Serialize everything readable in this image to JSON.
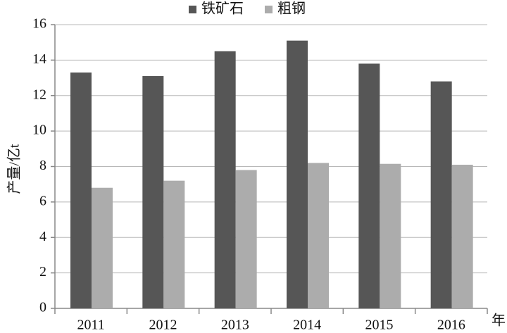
{
  "chart_data": {
    "type": "bar",
    "x_label": "年",
    "y_label": "产量/亿t",
    "categories": [
      "2011",
      "2012",
      "2013",
      "2014",
      "2015",
      "2016"
    ],
    "series": [
      {
        "name": "铁矿石",
        "color": "#565656",
        "values": [
          13.3,
          13.1,
          14.5,
          15.1,
          13.8,
          12.8
        ]
      },
      {
        "name": "粗钢",
        "color": "#acacac",
        "values": [
          6.8,
          7.2,
          7.8,
          8.2,
          8.15,
          8.1
        ]
      }
    ],
    "ylim": [
      0,
      16
    ],
    "yticks": [
      0,
      2,
      4,
      6,
      8,
      10,
      12,
      14,
      16
    ],
    "grid": true,
    "legend": "top"
  }
}
